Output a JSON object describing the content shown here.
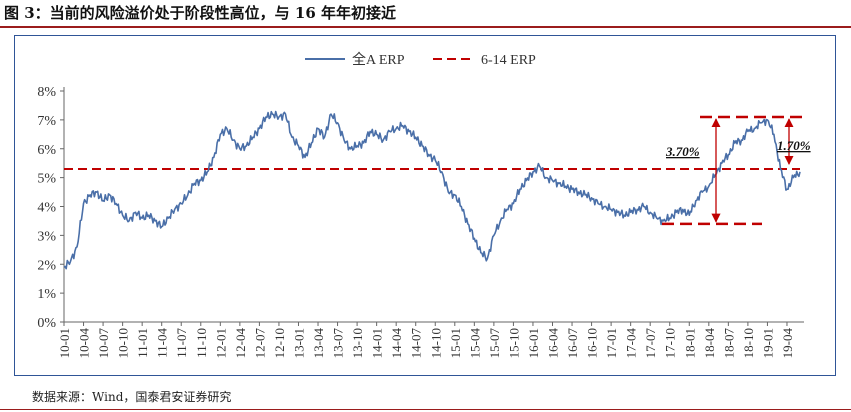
{
  "figure": {
    "title": "图 3：当前的风险溢价处于阶段性高位，与 16 年年初接近",
    "source": "数据来源：Wind，国泰君安证券研究"
  },
  "colors": {
    "series": "#4a6fa8",
    "reference": "#c00000",
    "frame": "#2f5597",
    "title_rule": "#9b1c1c"
  },
  "chart_data": {
    "type": "line",
    "legend_position": "top-center",
    "grid": false,
    "y_unit": "%",
    "ylim": [
      0,
      8
    ],
    "yticks": [
      "0%",
      "1%",
      "2%",
      "3%",
      "4%",
      "5%",
      "6%",
      "7%",
      "8%"
    ],
    "x_ticks": [
      "10-01",
      "10-04",
      "10-07",
      "10-10",
      "11-01",
      "11-04",
      "11-07",
      "11-10",
      "12-01",
      "12-04",
      "12-07",
      "12-10",
      "13-01",
      "13-04",
      "13-07",
      "13-10",
      "14-01",
      "14-04",
      "14-07",
      "14-10",
      "15-01",
      "15-04",
      "15-07",
      "15-10",
      "16-01",
      "16-04",
      "16-07",
      "16-10",
      "17-01",
      "17-04",
      "17-07",
      "17-10",
      "18-01",
      "18-04",
      "18-07",
      "18-10",
      "19-01",
      "19-04"
    ],
    "series": [
      {
        "name": "全A ERP",
        "style": "solid",
        "points": [
          [
            "10-01",
            1.9
          ],
          [
            "10-02",
            2.1
          ],
          [
            "10-03",
            2.6
          ],
          [
            "10-04",
            4.1
          ],
          [
            "10-05",
            4.4
          ],
          [
            "10-06",
            4.5
          ],
          [
            "10-07",
            4.2
          ],
          [
            "10-08",
            4.4
          ],
          [
            "10-09",
            4.1
          ],
          [
            "10-10",
            3.7
          ],
          [
            "10-11",
            3.5
          ],
          [
            "10-12",
            3.8
          ],
          [
            "11-01",
            3.6
          ],
          [
            "11-02",
            3.7
          ],
          [
            "11-03",
            3.5
          ],
          [
            "11-04",
            3.3
          ],
          [
            "11-05",
            3.6
          ],
          [
            "11-06",
            3.9
          ],
          [
            "11-07",
            4.1
          ],
          [
            "11-08",
            4.4
          ],
          [
            "11-09",
            4.8
          ],
          [
            "11-10",
            4.9
          ],
          [
            "11-11",
            5.2
          ],
          [
            "11-12",
            5.7
          ],
          [
            "12-01",
            6.5
          ],
          [
            "12-02",
            6.7
          ],
          [
            "12-03",
            6.3
          ],
          [
            "12-04",
            6.0
          ],
          [
            "12-05",
            6.1
          ],
          [
            "12-06",
            6.4
          ],
          [
            "12-07",
            6.7
          ],
          [
            "12-08",
            7.1
          ],
          [
            "12-09",
            7.2
          ],
          [
            "12-10",
            7.1
          ],
          [
            "12-11",
            7.2
          ],
          [
            "12-12",
            6.4
          ],
          [
            "13-01",
            6.1
          ],
          [
            "13-02",
            5.7
          ],
          [
            "13-03",
            6.2
          ],
          [
            "13-04",
            6.7
          ],
          [
            "13-05",
            6.4
          ],
          [
            "13-06",
            7.2
          ],
          [
            "13-07",
            6.9
          ],
          [
            "13-08",
            6.3
          ],
          [
            "13-09",
            6.0
          ],
          [
            "13-10",
            6.1
          ],
          [
            "13-11",
            6.2
          ],
          [
            "13-12",
            6.6
          ],
          [
            "14-01",
            6.5
          ],
          [
            "14-02",
            6.3
          ],
          [
            "14-03",
            6.6
          ],
          [
            "14-04",
            6.7
          ],
          [
            "14-05",
            6.8
          ],
          [
            "14-06",
            6.6
          ],
          [
            "14-07",
            6.4
          ],
          [
            "14-08",
            6.1
          ],
          [
            "14-09",
            5.8
          ],
          [
            "14-10",
            5.6
          ],
          [
            "14-11",
            5.2
          ],
          [
            "14-12",
            4.5
          ],
          [
            "15-01",
            4.4
          ],
          [
            "15-02",
            4.0
          ],
          [
            "15-03",
            3.4
          ],
          [
            "15-04",
            2.9
          ],
          [
            "15-05",
            2.4
          ],
          [
            "15-06",
            2.2
          ],
          [
            "15-07",
            3.0
          ],
          [
            "15-08",
            3.5
          ],
          [
            "15-09",
            3.9
          ],
          [
            "15-10",
            4.1
          ],
          [
            "15-11",
            4.6
          ],
          [
            "15-12",
            4.9
          ],
          [
            "16-01",
            5.2
          ],
          [
            "16-02",
            5.4
          ],
          [
            "16-03",
            5.0
          ],
          [
            "16-04",
            4.9
          ],
          [
            "16-05",
            4.8
          ],
          [
            "16-06",
            4.7
          ],
          [
            "16-07",
            4.6
          ],
          [
            "16-08",
            4.5
          ],
          [
            "16-09",
            4.4
          ],
          [
            "16-10",
            4.3
          ],
          [
            "16-11",
            4.1
          ],
          [
            "16-12",
            4.0
          ],
          [
            "17-01",
            3.9
          ],
          [
            "17-02",
            3.8
          ],
          [
            "17-03",
            3.7
          ],
          [
            "17-04",
            3.8
          ],
          [
            "17-05",
            3.9
          ],
          [
            "17-06",
            4.0
          ],
          [
            "17-07",
            3.8
          ],
          [
            "17-08",
            3.6
          ],
          [
            "17-09",
            3.5
          ],
          [
            "17-10",
            3.6
          ],
          [
            "17-11",
            3.8
          ],
          [
            "17-12",
            3.9
          ],
          [
            "18-01",
            3.7
          ],
          [
            "18-02",
            4.2
          ],
          [
            "18-03",
            4.5
          ],
          [
            "18-04",
            4.7
          ],
          [
            "18-05",
            5.1
          ],
          [
            "18-06",
            5.5
          ],
          [
            "18-07",
            5.8
          ],
          [
            "18-08",
            6.2
          ],
          [
            "18-09",
            6.3
          ],
          [
            "18-10",
            6.6
          ],
          [
            "18-11",
            6.7
          ],
          [
            "18-12",
            6.9
          ],
          [
            "19-01",
            7.0
          ],
          [
            "19-02",
            6.5
          ],
          [
            "19-03",
            5.3
          ],
          [
            "19-04",
            4.6
          ],
          [
            "19-05",
            5.0
          ],
          [
            "19-06",
            5.2
          ]
        ]
      },
      {
        "name": "6-14 ERP",
        "style": "dashed",
        "value": 5.3
      }
    ],
    "annotations": [
      {
        "text": "3.70%",
        "from": 3.4,
        "to": 7.1
      },
      {
        "text": "1.70%",
        "from": 5.4,
        "to": 7.1
      }
    ]
  }
}
